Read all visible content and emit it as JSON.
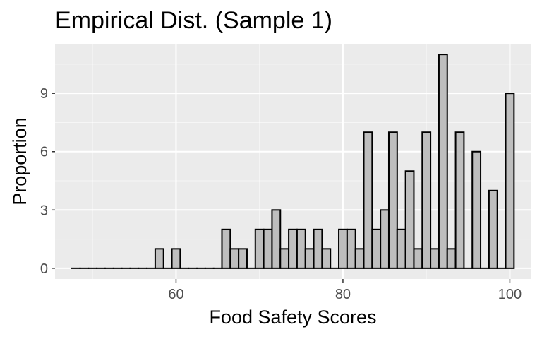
{
  "chart_data": {
    "type": "bar",
    "title": "Empirical Dist. (Sample 1)",
    "xlabel": "Food Safety Scores",
    "ylabel": "Proportion",
    "xlim": [
      45.5,
      102.5
    ],
    "ylim": [
      -0.55,
      11.55
    ],
    "x_ticks": [
      60,
      80,
      100
    ],
    "y_ticks": [
      0,
      3,
      6,
      9
    ],
    "bin_width": 1,
    "grid": true,
    "bins": [
      {
        "x": 48,
        "y": 0
      },
      {
        "x": 49,
        "y": 0
      },
      {
        "x": 50,
        "y": 0
      },
      {
        "x": 51,
        "y": 0
      },
      {
        "x": 52,
        "y": 0
      },
      {
        "x": 53,
        "y": 0
      },
      {
        "x": 54,
        "y": 0
      },
      {
        "x": 55,
        "y": 0
      },
      {
        "x": 56,
        "y": 0
      },
      {
        "x": 57,
        "y": 0
      },
      {
        "x": 58,
        "y": 1
      },
      {
        "x": 59,
        "y": 0
      },
      {
        "x": 60,
        "y": 1
      },
      {
        "x": 61,
        "y": 0
      },
      {
        "x": 62,
        "y": 0
      },
      {
        "x": 63,
        "y": 0
      },
      {
        "x": 64,
        "y": 0
      },
      {
        "x": 65,
        "y": 0
      },
      {
        "x": 66,
        "y": 2
      },
      {
        "x": 67,
        "y": 1
      },
      {
        "x": 68,
        "y": 1
      },
      {
        "x": 69,
        "y": 0
      },
      {
        "x": 70,
        "y": 2
      },
      {
        "x": 71,
        "y": 2
      },
      {
        "x": 72,
        "y": 3
      },
      {
        "x": 73,
        "y": 1
      },
      {
        "x": 74,
        "y": 2
      },
      {
        "x": 75,
        "y": 2
      },
      {
        "x": 76,
        "y": 1
      },
      {
        "x": 77,
        "y": 2
      },
      {
        "x": 78,
        "y": 1
      },
      {
        "x": 79,
        "y": 0
      },
      {
        "x": 80,
        "y": 2
      },
      {
        "x": 81,
        "y": 2
      },
      {
        "x": 82,
        "y": 1
      },
      {
        "x": 83,
        "y": 7
      },
      {
        "x": 84,
        "y": 2
      },
      {
        "x": 85,
        "y": 3
      },
      {
        "x": 86,
        "y": 7
      },
      {
        "x": 87,
        "y": 2
      },
      {
        "x": 88,
        "y": 5
      },
      {
        "x": 89,
        "y": 1
      },
      {
        "x": 90,
        "y": 7
      },
      {
        "x": 91,
        "y": 1
      },
      {
        "x": 92,
        "y": 11
      },
      {
        "x": 93,
        "y": 1
      },
      {
        "x": 94,
        "y": 7
      },
      {
        "x": 95,
        "y": 0
      },
      {
        "x": 96,
        "y": 6
      },
      {
        "x": 97,
        "y": 0
      },
      {
        "x": 98,
        "y": 4
      },
      {
        "x": 99,
        "y": 0
      },
      {
        "x": 100,
        "y": 9
      }
    ],
    "colors": {
      "panel": "#ebebeb",
      "grid_major": "#ffffff",
      "bar_fill": "#bebebe",
      "bar_stroke": "#000000"
    }
  }
}
